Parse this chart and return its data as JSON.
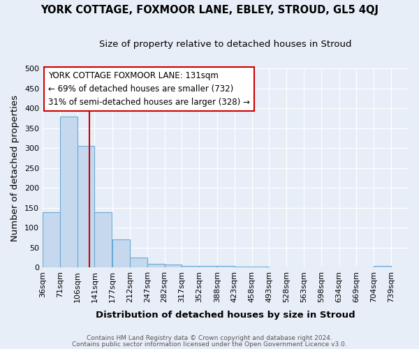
{
  "title": "YORK COTTAGE, FOXMOOR LANE, EBLEY, STROUD, GL5 4QJ",
  "subtitle": "Size of property relative to detached houses in Stroud",
  "xlabel": "Distribution of detached houses by size in Stroud",
  "ylabel": "Number of detached properties",
  "bin_labels": [
    "36sqm",
    "71sqm",
    "106sqm",
    "141sqm",
    "177sqm",
    "212sqm",
    "247sqm",
    "282sqm",
    "317sqm",
    "352sqm",
    "388sqm",
    "423sqm",
    "458sqm",
    "493sqm",
    "528sqm",
    "563sqm",
    "598sqm",
    "634sqm",
    "669sqm",
    "704sqm",
    "739sqm"
  ],
  "bin_left_edges": [
    36,
    71,
    106,
    141,
    177,
    212,
    247,
    282,
    317,
    352,
    388,
    423,
    458,
    493,
    528,
    563,
    598,
    634,
    669,
    704,
    739
  ],
  "bar_heights": [
    140,
    380,
    305,
    140,
    70,
    25,
    10,
    8,
    4,
    4,
    4,
    3,
    3,
    0,
    0,
    0,
    0,
    0,
    0,
    4,
    0
  ],
  "bar_color": "#c5d8ee",
  "bar_edge_color": "#6aaad4",
  "background_color": "#e8eef8",
  "grid_color": "#ffffff",
  "red_line_x": 131,
  "red_line_color": "#cc0000",
  "ylim": [
    0,
    500
  ],
  "yticks": [
    0,
    50,
    100,
    150,
    200,
    250,
    300,
    350,
    400,
    450,
    500
  ],
  "xlim_left": 36,
  "xlim_right": 774,
  "legend_line1": "YORK COTTAGE FOXMOOR LANE: 131sqm",
  "legend_line2": "← 69% of detached houses are smaller (732)",
  "legend_line3": "31% of semi-detached houses are larger (328) →",
  "footnote1": "Contains HM Land Registry data © Crown copyright and database right 2024.",
  "footnote2": "Contains public sector information licensed under the Open Government Licence v3.0.",
  "title_fontsize": 10.5,
  "subtitle_fontsize": 9.5,
  "axis_label_fontsize": 9.5,
  "tick_fontsize": 8,
  "legend_fontsize": 8.5,
  "footnote_fontsize": 6.5
}
